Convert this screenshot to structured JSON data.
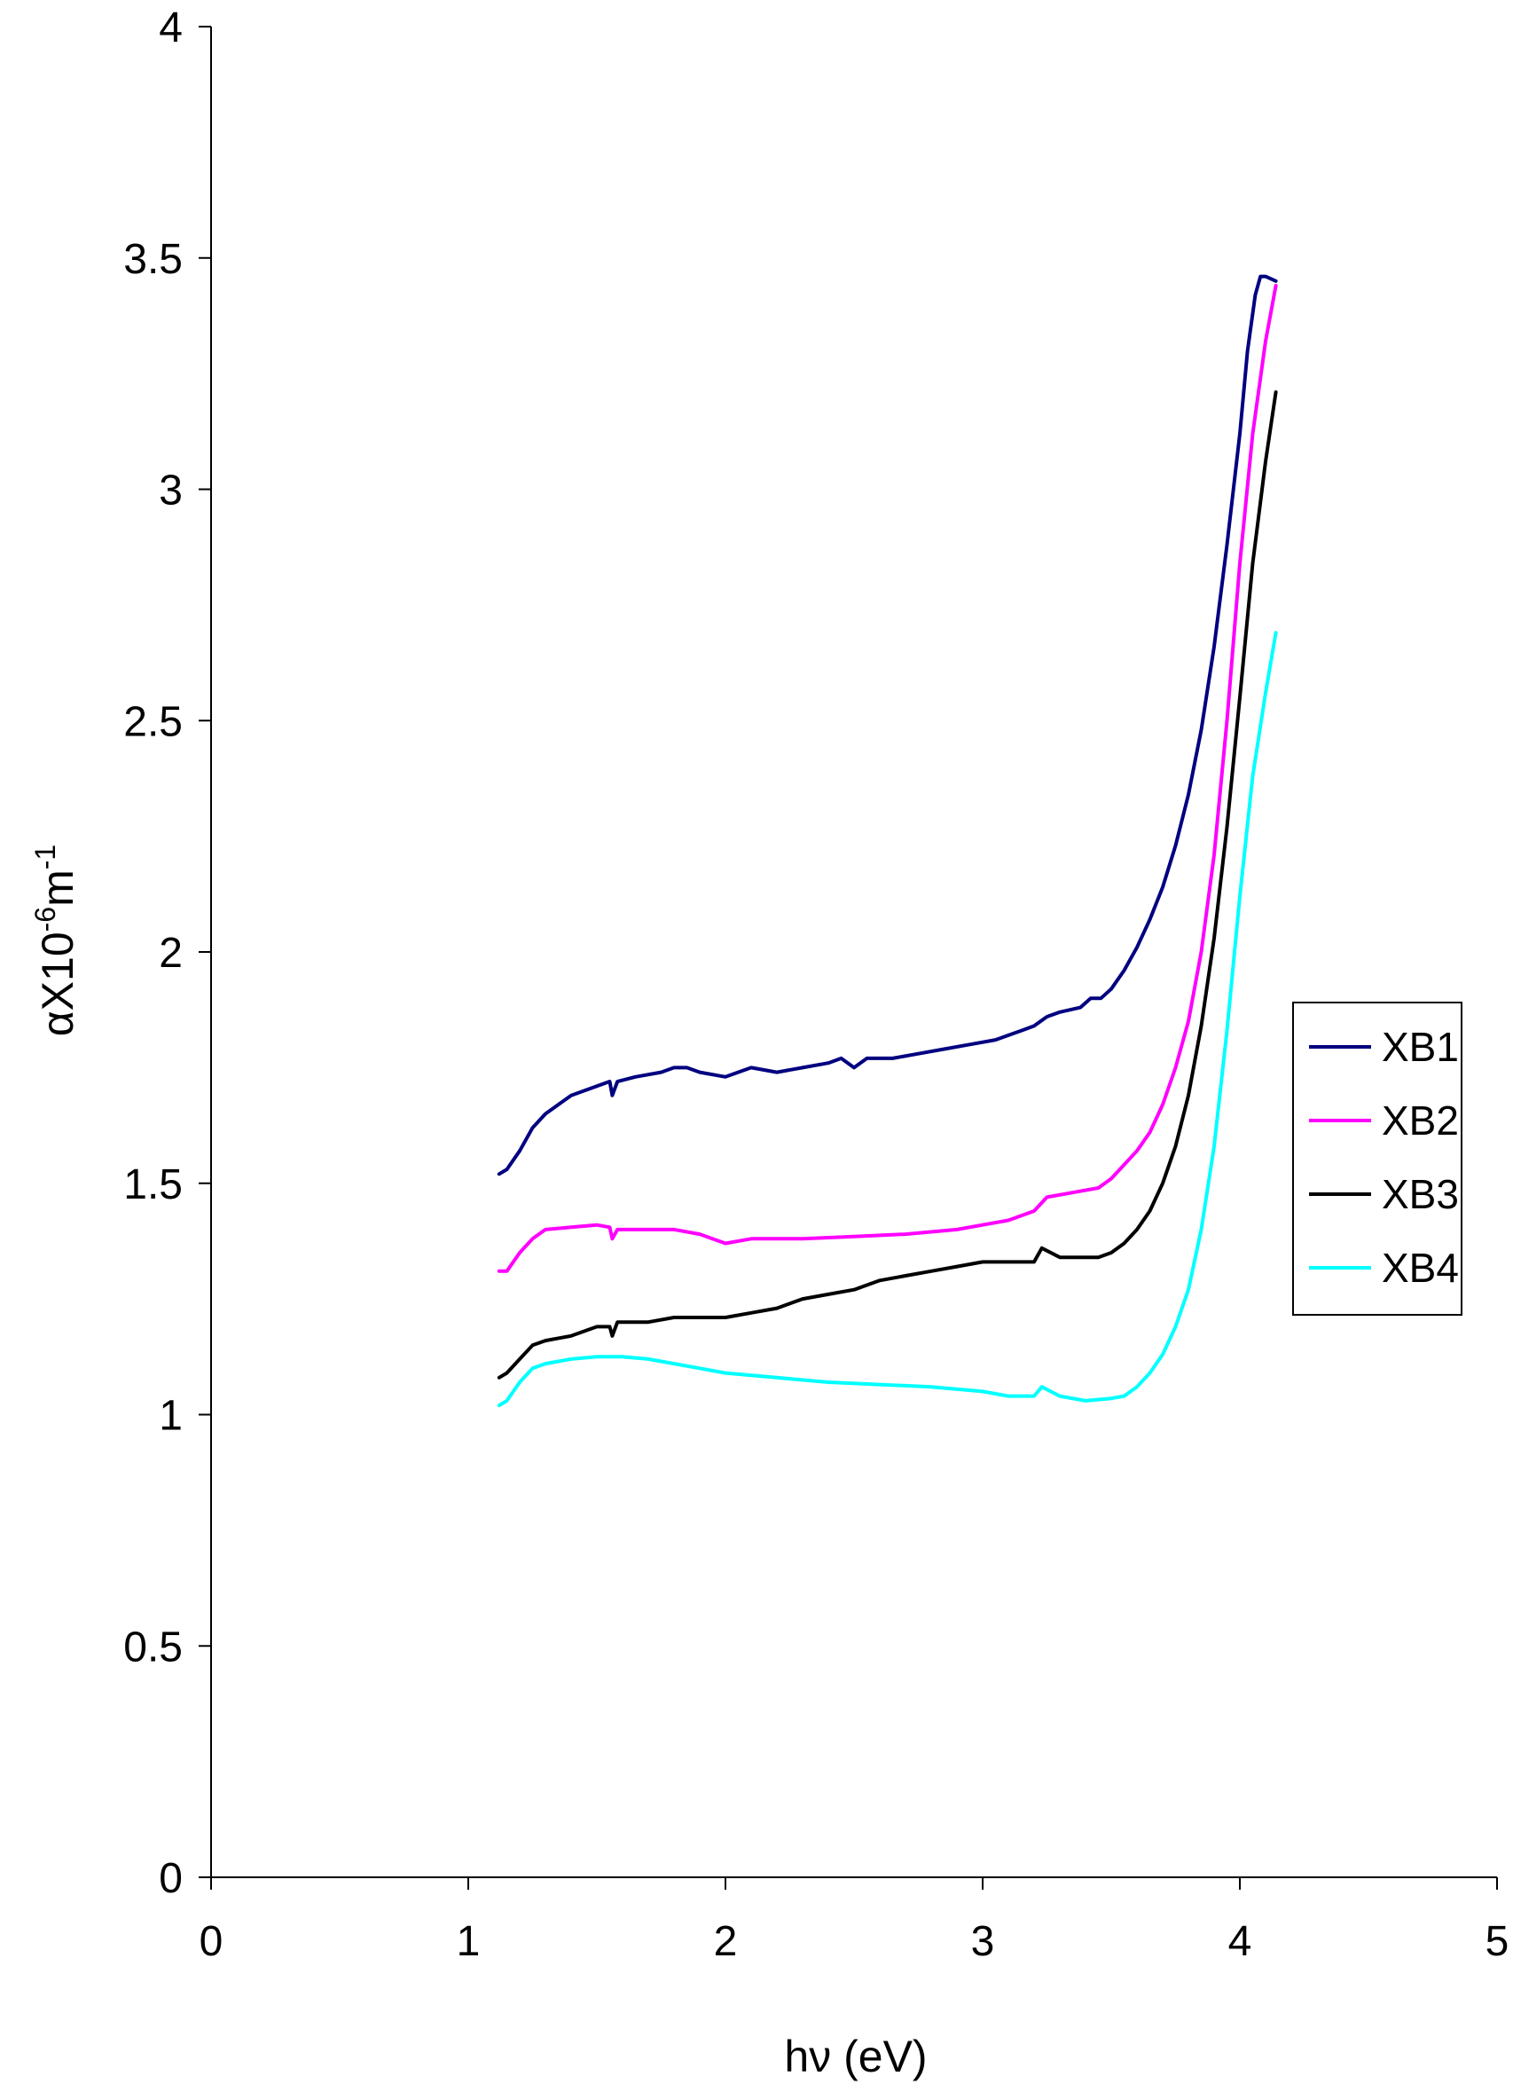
{
  "chart_data": {
    "type": "line",
    "title": "",
    "xlabel": "hν (eV)",
    "ylabel": {
      "base": "αX10",
      "exp1": "-6",
      "mid": "m",
      "exp2": "-1"
    },
    "xlim": [
      0,
      5
    ],
    "ylim": [
      0,
      4
    ],
    "xticks": [
      "0",
      "1",
      "2",
      "3",
      "4",
      "5"
    ],
    "yticks": [
      "0",
      "0.5",
      "1",
      "1.5",
      "2",
      "2.5",
      "3",
      "3.5",
      "4"
    ],
    "grid": false,
    "legend_position": "right",
    "series": [
      {
        "name": "XB1",
        "color": "#000080",
        "points": [
          [
            1.12,
            1.52
          ],
          [
            1.15,
            1.53
          ],
          [
            1.2,
            1.57
          ],
          [
            1.25,
            1.62
          ],
          [
            1.3,
            1.65
          ],
          [
            1.35,
            1.67
          ],
          [
            1.4,
            1.69
          ],
          [
            1.45,
            1.7
          ],
          [
            1.5,
            1.71
          ],
          [
            1.55,
            1.72
          ],
          [
            1.56,
            1.69
          ],
          [
            1.58,
            1.72
          ],
          [
            1.65,
            1.73
          ],
          [
            1.75,
            1.74
          ],
          [
            1.8,
            1.75
          ],
          [
            1.85,
            1.75
          ],
          [
            1.9,
            1.74
          ],
          [
            2.0,
            1.73
          ],
          [
            2.1,
            1.75
          ],
          [
            2.2,
            1.74
          ],
          [
            2.3,
            1.75
          ],
          [
            2.4,
            1.76
          ],
          [
            2.45,
            1.77
          ],
          [
            2.5,
            1.75
          ],
          [
            2.55,
            1.77
          ],
          [
            2.65,
            1.77
          ],
          [
            2.75,
            1.78
          ],
          [
            2.85,
            1.79
          ],
          [
            2.95,
            1.8
          ],
          [
            3.05,
            1.81
          ],
          [
            3.15,
            1.83
          ],
          [
            3.2,
            1.84
          ],
          [
            3.25,
            1.86
          ],
          [
            3.3,
            1.87
          ],
          [
            3.38,
            1.88
          ],
          [
            3.42,
            1.9
          ],
          [
            3.46,
            1.9
          ],
          [
            3.5,
            1.92
          ],
          [
            3.55,
            1.96
          ],
          [
            3.6,
            2.01
          ],
          [
            3.65,
            2.07
          ],
          [
            3.7,
            2.14
          ],
          [
            3.75,
            2.23
          ],
          [
            3.8,
            2.34
          ],
          [
            3.85,
            2.48
          ],
          [
            3.9,
            2.66
          ],
          [
            3.95,
            2.88
          ],
          [
            4.0,
            3.12
          ],
          [
            4.03,
            3.3
          ],
          [
            4.06,
            3.42
          ],
          [
            4.08,
            3.46
          ],
          [
            4.1,
            3.46
          ],
          [
            4.14,
            3.45
          ]
        ]
      },
      {
        "name": "XB2",
        "color": "#ff00ff",
        "points": [
          [
            1.12,
            1.31
          ],
          [
            1.15,
            1.31
          ],
          [
            1.2,
            1.35
          ],
          [
            1.25,
            1.38
          ],
          [
            1.3,
            1.4
          ],
          [
            1.4,
            1.405
          ],
          [
            1.5,
            1.41
          ],
          [
            1.55,
            1.405
          ],
          [
            1.56,
            1.38
          ],
          [
            1.58,
            1.4
          ],
          [
            1.7,
            1.4
          ],
          [
            1.8,
            1.4
          ],
          [
            1.9,
            1.39
          ],
          [
            2.0,
            1.37
          ],
          [
            2.1,
            1.38
          ],
          [
            2.3,
            1.38
          ],
          [
            2.5,
            1.385
          ],
          [
            2.7,
            1.39
          ],
          [
            2.9,
            1.4
          ],
          [
            3.0,
            1.41
          ],
          [
            3.1,
            1.42
          ],
          [
            3.2,
            1.44
          ],
          [
            3.25,
            1.47
          ],
          [
            3.35,
            1.48
          ],
          [
            3.45,
            1.49
          ],
          [
            3.5,
            1.51
          ],
          [
            3.55,
            1.54
          ],
          [
            3.6,
            1.57
          ],
          [
            3.65,
            1.61
          ],
          [
            3.7,
            1.67
          ],
          [
            3.75,
            1.75
          ],
          [
            3.8,
            1.85
          ],
          [
            3.85,
            2.0
          ],
          [
            3.9,
            2.21
          ],
          [
            3.95,
            2.5
          ],
          [
            4.0,
            2.84
          ],
          [
            4.05,
            3.12
          ],
          [
            4.1,
            3.32
          ],
          [
            4.14,
            3.44
          ]
        ]
      },
      {
        "name": "XB3",
        "color": "#000000",
        "points": [
          [
            1.12,
            1.08
          ],
          [
            1.15,
            1.09
          ],
          [
            1.2,
            1.12
          ],
          [
            1.25,
            1.15
          ],
          [
            1.3,
            1.16
          ],
          [
            1.4,
            1.17
          ],
          [
            1.5,
            1.19
          ],
          [
            1.55,
            1.19
          ],
          [
            1.56,
            1.17
          ],
          [
            1.58,
            1.2
          ],
          [
            1.7,
            1.2
          ],
          [
            1.8,
            1.21
          ],
          [
            1.9,
            1.21
          ],
          [
            2.0,
            1.21
          ],
          [
            2.1,
            1.22
          ],
          [
            2.2,
            1.23
          ],
          [
            2.3,
            1.25
          ],
          [
            2.4,
            1.26
          ],
          [
            2.5,
            1.27
          ],
          [
            2.6,
            1.29
          ],
          [
            2.7,
            1.3
          ],
          [
            2.8,
            1.31
          ],
          [
            2.9,
            1.32
          ],
          [
            3.0,
            1.33
          ],
          [
            3.1,
            1.33
          ],
          [
            3.2,
            1.33
          ],
          [
            3.23,
            1.36
          ],
          [
            3.3,
            1.34
          ],
          [
            3.4,
            1.34
          ],
          [
            3.45,
            1.34
          ],
          [
            3.5,
            1.35
          ],
          [
            3.55,
            1.37
          ],
          [
            3.6,
            1.4
          ],
          [
            3.65,
            1.44
          ],
          [
            3.7,
            1.5
          ],
          [
            3.75,
            1.58
          ],
          [
            3.8,
            1.69
          ],
          [
            3.85,
            1.84
          ],
          [
            3.9,
            2.03
          ],
          [
            3.95,
            2.27
          ],
          [
            4.0,
            2.55
          ],
          [
            4.05,
            2.84
          ],
          [
            4.1,
            3.06
          ],
          [
            4.14,
            3.21
          ]
        ]
      },
      {
        "name": "XB4",
        "color": "#00ffff",
        "points": [
          [
            1.12,
            1.02
          ],
          [
            1.15,
            1.03
          ],
          [
            1.2,
            1.07
          ],
          [
            1.25,
            1.1
          ],
          [
            1.3,
            1.11
          ],
          [
            1.4,
            1.12
          ],
          [
            1.5,
            1.125
          ],
          [
            1.55,
            1.125
          ],
          [
            1.6,
            1.125
          ],
          [
            1.7,
            1.12
          ],
          [
            1.8,
            1.11
          ],
          [
            1.9,
            1.1
          ],
          [
            2.0,
            1.09
          ],
          [
            2.2,
            1.08
          ],
          [
            2.4,
            1.07
          ],
          [
            2.6,
            1.065
          ],
          [
            2.8,
            1.06
          ],
          [
            3.0,
            1.05
          ],
          [
            3.1,
            1.04
          ],
          [
            3.2,
            1.04
          ],
          [
            3.23,
            1.06
          ],
          [
            3.3,
            1.04
          ],
          [
            3.4,
            1.03
          ],
          [
            3.5,
            1.035
          ],
          [
            3.55,
            1.04
          ],
          [
            3.6,
            1.06
          ],
          [
            3.65,
            1.09
          ],
          [
            3.7,
            1.13
          ],
          [
            3.75,
            1.19
          ],
          [
            3.8,
            1.27
          ],
          [
            3.85,
            1.4
          ],
          [
            3.9,
            1.58
          ],
          [
            3.95,
            1.83
          ],
          [
            4.0,
            2.12
          ],
          [
            4.05,
            2.38
          ],
          [
            4.1,
            2.56
          ],
          [
            4.14,
            2.69
          ]
        ]
      }
    ]
  }
}
